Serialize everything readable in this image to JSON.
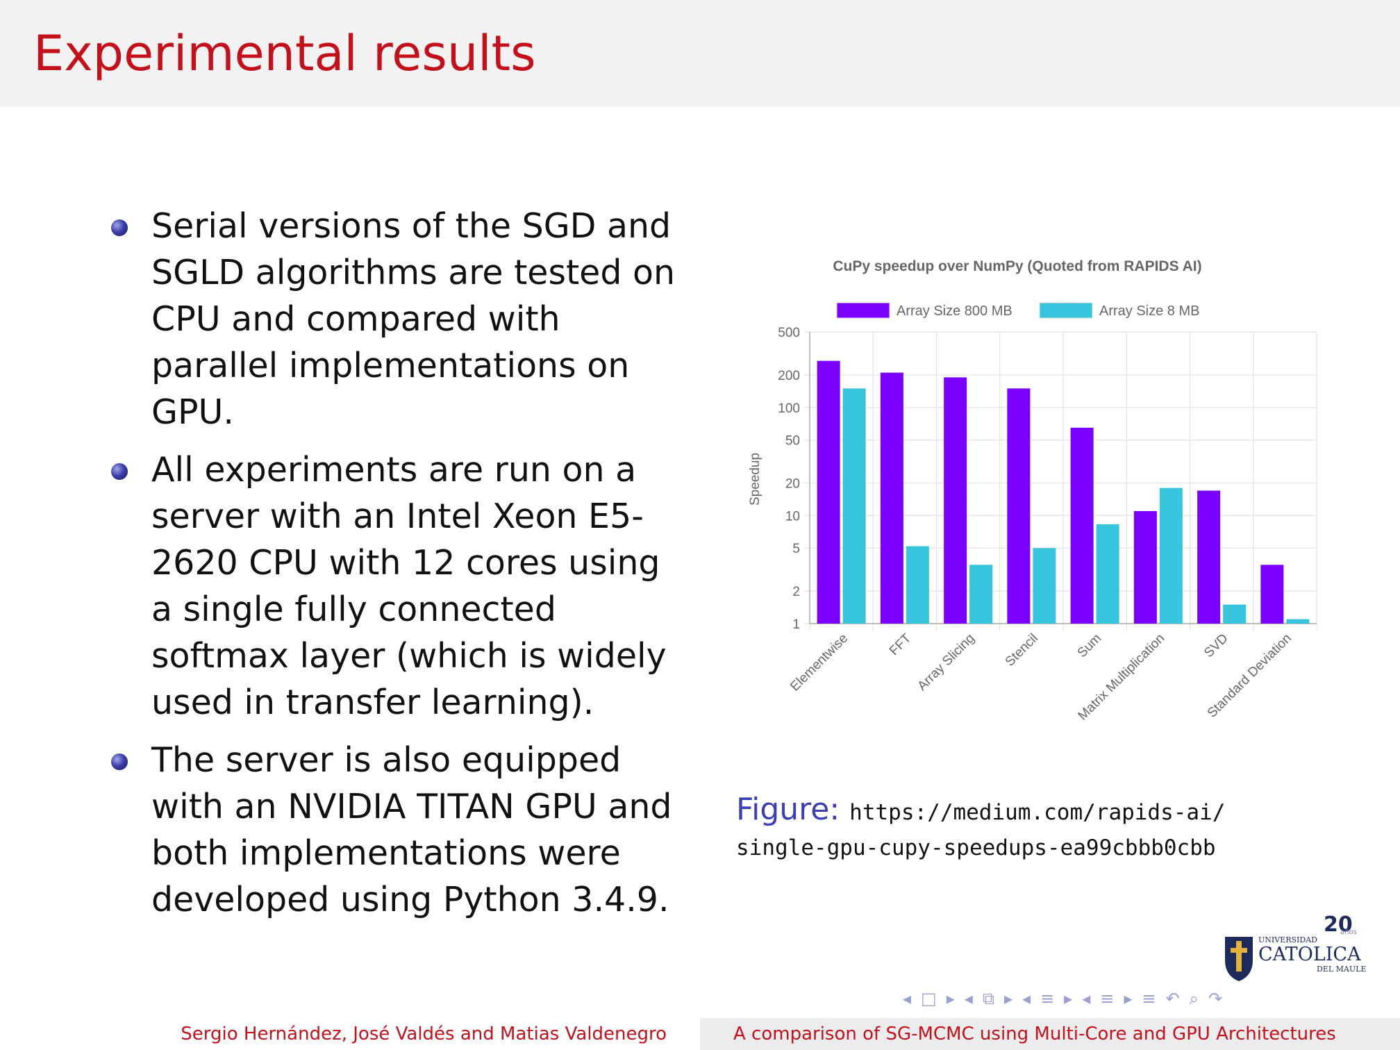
{
  "slide": {
    "title": "Experimental results",
    "bullets": [
      "Serial versions of the SGD and SGLD algorithms are tested on CPU and compared with parallel implementations on GPU.",
      "All experiments are run on a server with an Intel Xeon E5-2620 CPU with 12 cores using a single fully connected softmax layer (which is widely used in transfer learning).",
      "The server is also equipped with an NVIDIA TITAN GPU and both implementations were developed using Python 3.4.9."
    ],
    "caption_label": "Figure:",
    "caption_url_line1": "https://medium.com/rapids-ai/",
    "caption_url_line2": "single-gpu-cupy-speedups-ea99cbbb0cbb"
  },
  "logo": {
    "line1": "UNIVERSIDAD",
    "line2": "CATOLICA",
    "line3": "DEL MAULE",
    "badge_number": "20",
    "badge_text": "años"
  },
  "nav": {
    "glyphs": [
      "◂",
      "□",
      "▸",
      "◂",
      "⧉",
      "▸",
      "◂",
      "≡",
      "▸",
      "◂",
      "≡",
      "▸",
      "≡",
      "↶",
      "⌕",
      "↷"
    ]
  },
  "footer": {
    "authors": "Sergio Hernández, José Valdés and Matias Valdenegro",
    "talk_title": "A comparison of SG-MCMC using Multi-Core and GPU Architectures"
  },
  "colors": {
    "title": "#c4101b",
    "series_800": "#7a00ff",
    "series_8": "#36c5dc"
  },
  "chart_data": {
    "type": "bar",
    "title": "CuPy speedup over NumPy (Quoted from RAPIDS AI)",
    "ylabel": "Speedup",
    "xlabel": "",
    "yscale": "log",
    "ylim": [
      1,
      500
    ],
    "yticks": [
      1,
      2,
      5,
      10,
      20,
      50,
      100,
      200,
      500
    ],
    "categories": [
      "Elementwise",
      "FFT",
      "Array Slicing",
      "Stencil",
      "Sum",
      "Matrix Multiplication",
      "SVD",
      "Standard Deviation"
    ],
    "series": [
      {
        "name": "Array Size 800 MB",
        "values": [
          270,
          210,
          190,
          150,
          65,
          11,
          17,
          3.5
        ]
      },
      {
        "name": "Array Size 8 MB",
        "values": [
          150,
          5.2,
          3.5,
          5,
          8.3,
          18,
          1.5,
          1.1
        ]
      }
    ],
    "legend": "top",
    "grid": true
  }
}
